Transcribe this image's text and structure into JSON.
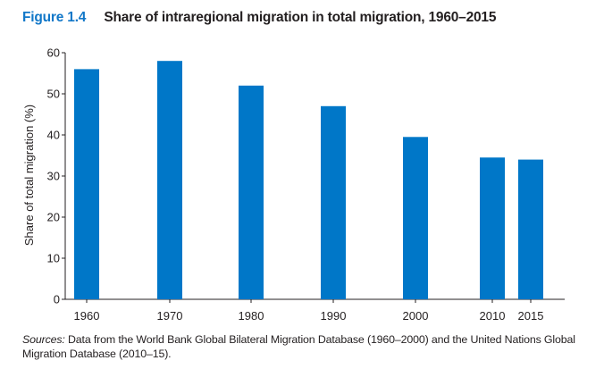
{
  "figure": {
    "label": "Figure 1.4",
    "title": "Share of intraregional migration in total migration, 1960–2015"
  },
  "colors": {
    "bar": "#0077c8",
    "figure_label": "#1177c8",
    "axis": "#231f20"
  },
  "sources": {
    "label": "Sources:",
    "text": "Data from the World Bank Global Bilateral Migration Database (1960–2000) and the United Nations Global Migration Database (2010–15)."
  },
  "chart_data": {
    "type": "bar",
    "categories": [
      "1960",
      "1970",
      "1980",
      "1990",
      "2000",
      "2010",
      "2015"
    ],
    "values": [
      56,
      58,
      52,
      47,
      39.5,
      34.5,
      34
    ],
    "xlabel": "",
    "ylabel": "Share of total migration (%)",
    "ylim": [
      0,
      60
    ],
    "yticks": [
      0,
      10,
      20,
      30,
      40,
      50,
      60
    ],
    "grid": false,
    "legend": "none"
  }
}
